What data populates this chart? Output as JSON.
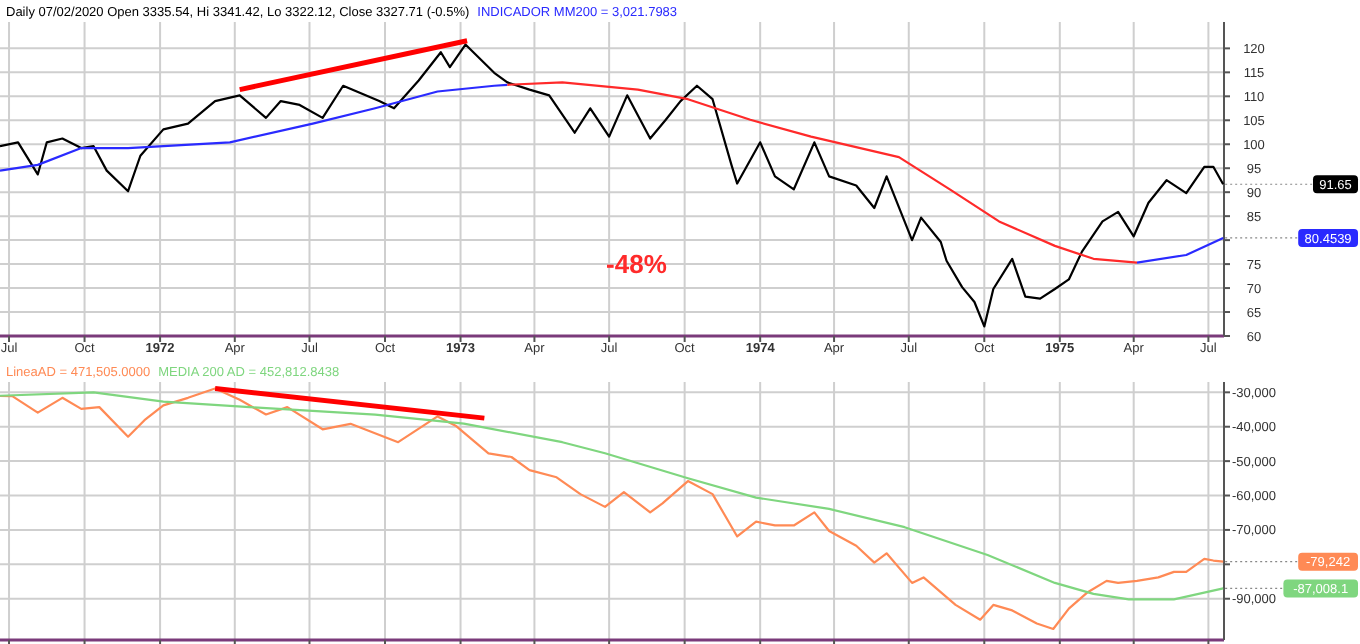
{
  "chart_data": [
    {
      "type": "line",
      "title": "Daily 07/02/2020 Open 3335.54, Hi 3341.42, Lo 3322.12, Close 3327.71 (-0.5%)",
      "subtitle": "INDICADOR MM200 = 3,021.7983",
      "xlim": [
        "1971-06-20",
        "1975-07-20"
      ],
      "xticks": [
        {
          "value": "1971-07-01",
          "label": "Jul"
        },
        {
          "value": "1971-10-01",
          "label": "Oct"
        },
        {
          "value": "1972-01-01",
          "label": "1972"
        },
        {
          "value": "1972-04-01",
          "label": "Apr"
        },
        {
          "value": "1972-07-01",
          "label": "Jul"
        },
        {
          "value": "1972-10-01",
          "label": "Oct"
        },
        {
          "value": "1973-01-01",
          "label": "1973"
        },
        {
          "value": "1973-04-01",
          "label": "Apr"
        },
        {
          "value": "1973-07-01",
          "label": "Jul"
        },
        {
          "value": "1973-10-01",
          "label": "Oct"
        },
        {
          "value": "1974-01-01",
          "label": "1974"
        },
        {
          "value": "1974-04-01",
          "label": "Apr"
        },
        {
          "value": "1974-07-01",
          "label": "Jul"
        },
        {
          "value": "1974-10-01",
          "label": "Oct"
        },
        {
          "value": "1975-01-01",
          "label": "1975"
        },
        {
          "value": "1975-04-01",
          "label": "Apr"
        },
        {
          "value": "1975-07-01",
          "label": "Jul"
        }
      ],
      "ylim": [
        60,
        125.5
      ],
      "yticks": [
        60,
        65,
        70,
        75,
        {
          "value": 80,
          "label": null
        },
        85,
        90,
        95,
        100,
        105,
        110,
        115,
        120
      ],
      "grid": true,
      "marker": "none",
      "annotations": [
        "-48%",
        {
          "text": "91.65",
          "x": "1975-07-19",
          "y": 91.65
        },
        {
          "text": "80.4539",
          "x": "1975-07-19",
          "y": 80.45
        }
      ],
      "series": [
        {
          "color": "#000000",
          "x": [
            "1971-06-20",
            "1971-07-12",
            "1971-08-05",
            "1971-08-16",
            "1971-09-04",
            "1971-09-27",
            "1971-10-12",
            "1971-10-28",
            "1971-11-23",
            "1971-12-08",
            "1972-01-05",
            "1972-02-04",
            "1972-03-08",
            "1972-04-07",
            "1972-05-09",
            "1972-05-27",
            "1972-06-19",
            "1972-07-17",
            "1972-08-11",
            "1972-09-24",
            "1972-10-12",
            "1972-11-11",
            "1972-12-08",
            "1972-12-19",
            "1973-01-07",
            "1973-02-11",
            "1973-02-27",
            "1973-03-26",
            "1973-04-19",
            "1973-05-20",
            "1973-06-08",
            "1973-07-01",
            "1973-07-23",
            "1973-08-20",
            "1973-09-08",
            "1973-09-26",
            "1973-10-16",
            "1973-11-04",
            "1973-11-27",
            "1973-12-04",
            "1974-01-01",
            "1974-01-19",
            "1974-02-11",
            "1974-03-08",
            "1974-03-26",
            "1974-04-28",
            "1974-05-20",
            "1974-06-04",
            "1974-07-05",
            "1974-07-16",
            "1974-08-09",
            "1974-08-16",
            "1974-09-04",
            "1974-09-19",
            "1974-10-01",
            "1974-10-12",
            "1974-11-04",
            "1974-11-20",
            "1974-12-08",
            "1974-12-26",
            "1975-01-12",
            "1975-01-28",
            "1975-02-22",
            "1975-03-13",
            "1975-04-01",
            "1975-04-19",
            "1975-05-11",
            "1975-06-04",
            "1975-06-26",
            "1975-07-07",
            "1975-07-19"
          ],
          "values": [
            99.6,
            100.4,
            93.7,
            100.4,
            101.2,
            99.2,
            99.6,
            94.5,
            90.2,
            97.6,
            103.1,
            104.3,
            109.0,
            110.2,
            105.5,
            109.0,
            108.2,
            105.5,
            112.2,
            109.0,
            107.5,
            113.3,
            119.2,
            116.1,
            120.8,
            114.9,
            112.9,
            111.4,
            110.2,
            102.4,
            107.5,
            101.6,
            110.2,
            101.2,
            105.1,
            109.0,
            112.2,
            109.4,
            95.7,
            91.8,
            100.4,
            93.3,
            90.6,
            100.4,
            93.3,
            91.4,
            86.7,
            93.3,
            80.0,
            84.7,
            79.6,
            75.7,
            70.2,
            67.1,
            62.0,
            69.8,
            76.1,
            68.2,
            67.8,
            69.8,
            71.8,
            77.6,
            83.9,
            85.9,
            80.8,
            87.8,
            92.5,
            89.8,
            95.3,
            95.3,
            91.65
          ]
        },
        {
          "color": "#2a2aff",
          "x": [
            "1971-06-20",
            "1971-08-05",
            "1971-09-27",
            "1971-11-23",
            "1972-03-26",
            "1972-07-05",
            "1972-09-19",
            "1972-12-04",
            "1973-02-11",
            "1973-02-27",
            "1974-03-19",
            "1975-04-05",
            "1975-06-04",
            "1975-07-19"
          ],
          "values": [
            94.5,
            95.7,
            99.2,
            99.2,
            100.4,
            104.3,
            107.5,
            111.0,
            112.2,
            112.4,
            null,
            75.3,
            76.9,
            80.45
          ]
        },
        {
          "color": "#ff2a2a",
          "x": [
            "1973-02-27",
            "1973-05-05",
            "1973-08-05",
            "1973-10-05",
            "1973-12-20",
            "1974-03-04",
            "1974-06-19",
            "1974-08-20",
            "1974-10-19",
            "1974-12-26",
            "1975-02-11",
            "1975-04-05"
          ],
          "values": [
            112.4,
            112.9,
            111.4,
            109.4,
            105.1,
            101.6,
            97.3,
            90.6,
            83.9,
            78.8,
            76.1,
            75.3
          ]
        },
        {
          "color": "#ff0000",
          "x": [
            "1972-04-07",
            "1973-01-09"
          ],
          "values": [
            111.4,
            121.6
          ]
        }
      ]
    },
    {
      "type": "line",
      "title": "LineaAD = 471,505.0000",
      "subtitle": "MEDIA 200 AD = 452,812.8438",
      "xlim": [
        "1971-06-20",
        "1975-07-20"
      ],
      "xticks": [
        {
          "value": "1971-07-01",
          "label": null
        },
        {
          "value": "1971-10-01",
          "label": null
        },
        {
          "value": "1972-01-01",
          "label": null
        },
        {
          "value": "1972-04-01",
          "label": null
        },
        {
          "value": "1972-07-01",
          "label": null
        },
        {
          "value": "1972-10-01",
          "label": null
        },
        {
          "value": "1973-01-01",
          "label": null
        },
        {
          "value": "1973-04-01",
          "label": null
        },
        {
          "value": "1973-07-01",
          "label": null
        },
        {
          "value": "1973-10-01",
          "label": null
        },
        {
          "value": "1974-01-01",
          "label": null
        },
        {
          "value": "1974-04-01",
          "label": null
        },
        {
          "value": "1974-07-01",
          "label": null
        },
        {
          "value": "1974-10-01",
          "label": null
        },
        {
          "value": "1975-01-01",
          "label": null
        },
        {
          "value": "1975-04-01",
          "label": null
        },
        {
          "value": "1975-07-01",
          "label": null
        }
      ],
      "tick_labels": "y",
      "ylim": [
        -102000,
        -27000
      ],
      "yticks": [
        {
          "value": -30000,
          "label": "-30,000"
        },
        {
          "value": -40000,
          "label": "-40,000"
        },
        {
          "value": -50000,
          "label": "-50,000"
        },
        {
          "value": -60000,
          "label": "-60,000"
        },
        {
          "value": -70000,
          "label": "-70,000"
        },
        {
          "value": -80000,
          "label": null
        },
        {
          "value": -90000,
          "label": "-90,000"
        }
      ],
      "grid": true,
      "marker": "none",
      "annotations": [
        {
          "text": "-79,242",
          "x": "1975-07-19",
          "y": -79242
        },
        {
          "text": "-87,008.1",
          "x": "1975-07-19",
          "y": -87008
        }
      ],
      "series": [
        {
          "color": "#ff8a55",
          "x": [
            "1971-06-20",
            "1971-07-05",
            "1971-08-05",
            "1971-09-04",
            "1971-09-27",
            "1971-10-19",
            "1971-11-23",
            "1971-12-13",
            "1972-01-05",
            "1972-02-04",
            "1972-03-08",
            "1972-04-07",
            "1972-05-09",
            "1972-06-04",
            "1972-07-17",
            "1972-08-20",
            "1972-10-17",
            "1972-12-04",
            "1972-12-26",
            "1973-02-04",
            "1973-03-04",
            "1973-03-26",
            "1973-04-28",
            "1973-05-27",
            "1973-06-26",
            "1973-07-19",
            "1973-08-20",
            "1973-09-04",
            "1973-10-05",
            "1973-11-04",
            "1973-12-04",
            "1973-12-27",
            "1974-01-19",
            "1974-02-11",
            "1974-03-08",
            "1974-03-26",
            "1974-04-28",
            "1974-05-20",
            "1974-06-04",
            "1974-07-05",
            "1974-07-19",
            "1974-08-27",
            "1974-09-26",
            "1974-10-12",
            "1974-11-04",
            "1974-12-04",
            "1974-12-24",
            "1975-01-12",
            "1975-02-04",
            "1975-02-27",
            "1975-03-13",
            "1975-04-05",
            "1975-05-01",
            "1975-05-20",
            "1975-06-04",
            "1975-06-26",
            "1975-07-07",
            "1975-07-19"
          ],
          "values": [
            -31075,
            -31100,
            -35900,
            -31600,
            -34800,
            -34300,
            -42900,
            -38100,
            -33800,
            -31600,
            -28900,
            -32150,
            -36450,
            -34300,
            -40750,
            -39150,
            -44500,
            -37000,
            -39700,
            -47750,
            -48800,
            -52600,
            -54700,
            -59600,
            -63300,
            -59000,
            -64900,
            -62300,
            -55800,
            -59600,
            -71900,
            -67600,
            -68700,
            -68700,
            -64900,
            -70300,
            -74600,
            -79500,
            -76800,
            -85400,
            -83800,
            -91800,
            -96100,
            -91800,
            -93400,
            -97200,
            -98800,
            -92900,
            -88100,
            -84800,
            -85400,
            -84800,
            -83800,
            -82200,
            -82200,
            -78400,
            -78900,
            -79242
          ]
        },
        {
          "color": "#7fd67f",
          "x": [
            "1971-06-20",
            "1971-10-12",
            "1972-01-05",
            "1972-04-19",
            "1972-09-19",
            "1973-01-05",
            "1973-05-05",
            "1973-06-26",
            "1973-10-05",
            "1973-12-27",
            "1974-03-26",
            "1974-06-26",
            "1974-10-05",
            "1974-12-26",
            "1975-02-11",
            "1975-03-26",
            "1975-05-20",
            "1975-07-19"
          ],
          "values": [
            -31000,
            -30000,
            -32700,
            -34300,
            -36500,
            -39100,
            -44500,
            -47700,
            -55000,
            -60600,
            -63900,
            -69200,
            -77300,
            -85400,
            -88600,
            -90200,
            -90200,
            -87008
          ]
        },
        {
          "color": "#ff0000",
          "x": [
            "1972-03-08",
            "1973-01-30"
          ],
          "values": [
            -28900,
            -37500
          ]
        }
      ]
    }
  ]
}
